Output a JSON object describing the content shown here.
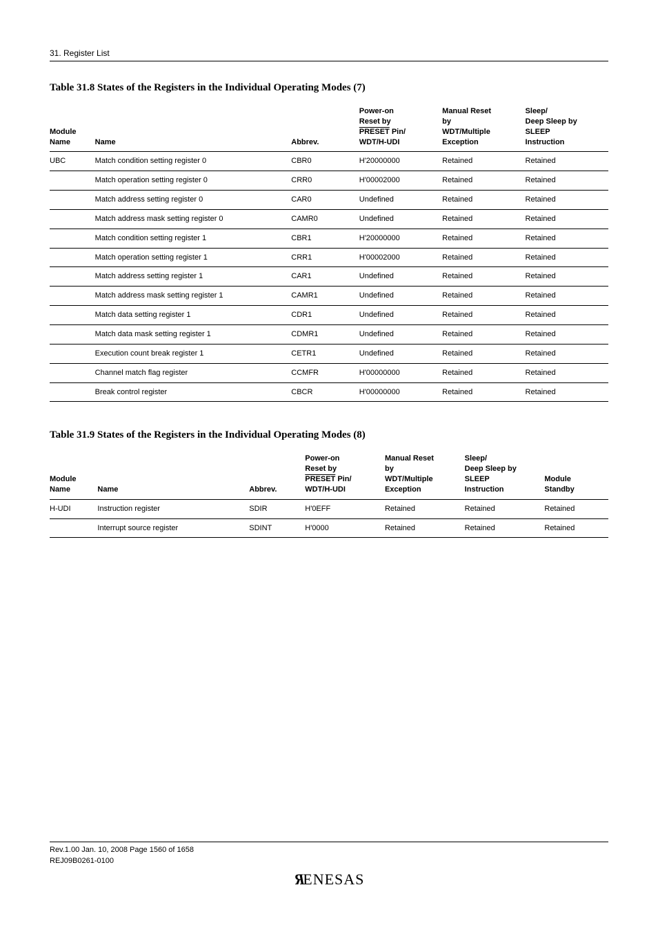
{
  "section_header": "31.   Register List",
  "table7": {
    "caption": "Table 31.8    States of the Registers in the Individual Operating Modes (7)",
    "col_module": "Module Name",
    "col_name": "Name",
    "col_abbrev": "Abbrev.",
    "col_poweron_l1": "Power-on",
    "col_poweron_l2": "Reset by",
    "col_poweron_l3_pre": "PRESET",
    "col_poweron_l3_post": " Pin/",
    "col_poweron_l4": "WDT/H-UDI",
    "col_manual_l1": "Manual Reset",
    "col_manual_l2": "by",
    "col_manual_l3": "WDT/Multiple",
    "col_manual_l4": "Exception",
    "col_sleep_l1": "Sleep/",
    "col_sleep_l2": "Deep Sleep by",
    "col_sleep_l3": "SLEEP",
    "col_sleep_l4": "Instruction",
    "module": "UBC",
    "rows": [
      {
        "name": "Match condition setting register 0",
        "abbrev": "CBR0",
        "poweron": "H'20000000",
        "manual": "Retained",
        "sleep": "Retained"
      },
      {
        "name": "Match operation setting register 0",
        "abbrev": "CRR0",
        "poweron": "H'00002000",
        "manual": "Retained",
        "sleep": "Retained"
      },
      {
        "name": "Match address setting register 0",
        "abbrev": "CAR0",
        "poweron": "Undefined",
        "manual": "Retained",
        "sleep": "Retained"
      },
      {
        "name": "Match address mask setting register 0",
        "abbrev": "CAMR0",
        "poweron": "Undefined",
        "manual": "Retained",
        "sleep": "Retained"
      },
      {
        "name": "Match condition setting register 1",
        "abbrev": "CBR1",
        "poweron": "H'20000000",
        "manual": "Retained",
        "sleep": "Retained"
      },
      {
        "name": "Match operation setting register 1",
        "abbrev": "CRR1",
        "poweron": "H'00002000",
        "manual": "Retained",
        "sleep": "Retained"
      },
      {
        "name": "Match address setting register 1",
        "abbrev": "CAR1",
        "poweron": "Undefined",
        "manual": "Retained",
        "sleep": "Retained"
      },
      {
        "name": "Match address mask setting register 1",
        "abbrev": "CAMR1",
        "poweron": "Undefined",
        "manual": "Retained",
        "sleep": "Retained"
      },
      {
        "name": "Match data setting register 1",
        "abbrev": "CDR1",
        "poweron": "Undefined",
        "manual": "Retained",
        "sleep": "Retained"
      },
      {
        "name": "Match data mask setting register 1",
        "abbrev": "CDMR1",
        "poweron": "Undefined",
        "manual": "Retained",
        "sleep": "Retained"
      },
      {
        "name": "Execution count break register 1",
        "abbrev": "CETR1",
        "poweron": "Undefined",
        "manual": "Retained",
        "sleep": "Retained"
      },
      {
        "name": "Channel match flag register",
        "abbrev": "CCMFR",
        "poweron": "H'00000000",
        "manual": "Retained",
        "sleep": "Retained"
      },
      {
        "name": "Break control register",
        "abbrev": "CBCR",
        "poweron": "H'00000000",
        "manual": "Retained",
        "sleep": "Retained"
      }
    ]
  },
  "table8": {
    "caption": "Table 31.9    States of the Registers in the Individual Operating Modes (8)",
    "col_module": "Module Name",
    "col_name": "Name",
    "col_abbrev": "Abbrev.",
    "col_poweron_l1": "Power-on",
    "col_poweron_l2": "Reset by",
    "col_poweron_l3_pre": "PRESET",
    "col_poweron_l3_post": " Pin/",
    "col_poweron_l4": "WDT/H-UDI",
    "col_manual_l1": "Manual Reset",
    "col_manual_l2": "by",
    "col_manual_l3": "WDT/Multiple",
    "col_manual_l4": "Exception",
    "col_sleep_l1": "Sleep/",
    "col_sleep_l2": "Deep Sleep by",
    "col_sleep_l3": "SLEEP",
    "col_sleep_l4": "Instruction",
    "col_modstb_l1": "Module",
    "col_modstb_l2": "Standby",
    "module": "H-UDI",
    "rows": [
      {
        "name": "Instruction register",
        "abbrev": "SDIR",
        "poweron": "H'0EFF",
        "manual": "Retained",
        "sleep": "Retained",
        "modstb": "Retained"
      },
      {
        "name": "Interrupt source register",
        "abbrev": "SDINT",
        "poweron": "H'0000",
        "manual": "Retained",
        "sleep": "Retained",
        "modstb": "Retained"
      }
    ]
  },
  "footer": {
    "line1": "Rev.1.00  Jan. 10, 2008  Page 1560 of 1658",
    "line2": "REJ09B0261-0100",
    "logo_rest": "ENESAS"
  }
}
